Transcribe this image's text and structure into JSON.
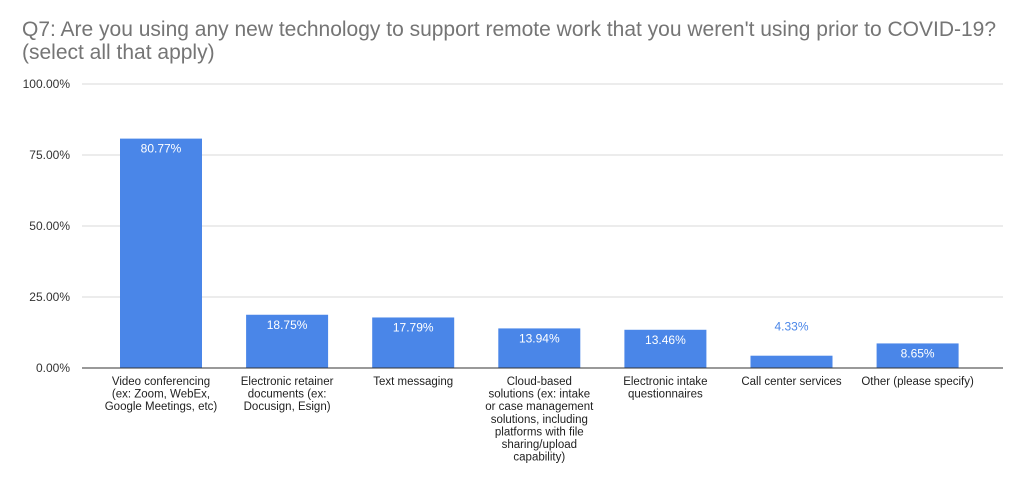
{
  "title": {
    "line1": "Q7: Are you using any new technology to support remote work that you weren't using prior to COVID-19?",
    "line2": "(select all that apply)"
  },
  "colors": {
    "bar": "#4a86e8",
    "grid": "#d9d9d9",
    "axis": "#333333"
  },
  "chart_data": {
    "type": "bar",
    "title": "Q7: Are you using any new technology to support remote work that you weren't using prior to COVID-19? (select all that apply)",
    "xlabel": "",
    "ylabel": "",
    "ylim": [
      0,
      100
    ],
    "yticks": [
      0,
      25,
      50,
      75,
      100
    ],
    "ytick_labels": [
      "0.00%",
      "25.00%",
      "50.00%",
      "75.00%",
      "100.00%"
    ],
    "grid": true,
    "legend": "none",
    "categories": [
      [
        "Video conferencing",
        "(ex: Zoom, WebEx,",
        "Google Meetings, etc)"
      ],
      [
        "Electronic retainer",
        "documents (ex:",
        "Docusign, Esign)"
      ],
      [
        "Text messaging"
      ],
      [
        "Cloud-based",
        "solutions (ex: intake",
        "or case management",
        "solutions, including",
        "platforms with file",
        "sharing/upload",
        "capability)"
      ],
      [
        "Electronic intake",
        "questionnaires"
      ],
      [
        "Call center services"
      ],
      [
        "Other (please specify)"
      ]
    ],
    "values": [
      80.77,
      18.75,
      17.79,
      13.94,
      13.46,
      4.33,
      8.65
    ],
    "value_labels": [
      "80.77%",
      "18.75%",
      "17.79%",
      "13.94%",
      "13.46%",
      "4.33%",
      "8.65%"
    ]
  }
}
